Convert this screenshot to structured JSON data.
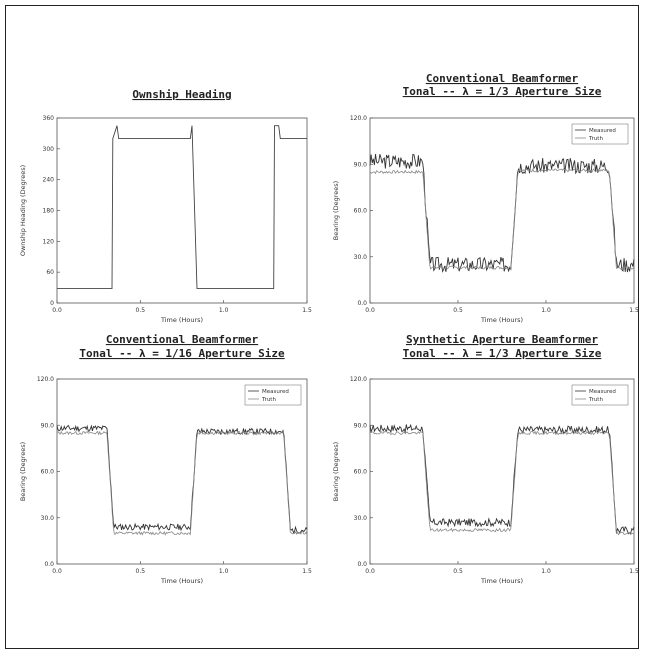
{
  "chart_data": [
    {
      "type": "line",
      "title": "Ownship Heading",
      "title_lines": [
        "Ownship Heading"
      ],
      "xlabel": "Time (Hours)",
      "ylabel": "Ownship Heading (Degrees)",
      "xlim": [
        0,
        1.5
      ],
      "ylim": [
        0,
        360
      ],
      "xticks": [
        {
          "v": 0,
          "label": "0.0"
        },
        {
          "v": 0.5,
          "label": "0.5"
        },
        {
          "v": 1.0,
          "label": "1.0"
        },
        {
          "v": 1.5,
          "label": "1.5"
        }
      ],
      "yticks": [
        {
          "v": 0,
          "label": "0"
        },
        {
          "v": 60,
          "label": "60"
        },
        {
          "v": 120,
          "label": "120"
        },
        {
          "v": 180,
          "label": "180"
        },
        {
          "v": 240,
          "label": "240"
        },
        {
          "v": 300,
          "label": "300"
        },
        {
          "v": 360,
          "label": "360"
        }
      ],
      "legend": [],
      "series": [
        {
          "color": "#444444",
          "x": [
            0,
            0.33,
            0.335,
            0.36,
            0.37,
            0.8,
            0.81,
            0.84,
            0.845,
            1.3,
            1.305,
            1.33,
            1.34,
            1.5
          ],
          "y": [
            28,
            28,
            320,
            345,
            320,
            320,
            345,
            28,
            28,
            28,
            345,
            345,
            320,
            320
          ]
        }
      ]
    },
    {
      "type": "line",
      "title": "Conventional Beamformer Tonal -- λ = 1/3 Aperture Size",
      "title_lines": [
        "Conventional Beamformer",
        "Tonal -- λ = 1/3 Aperture Size"
      ],
      "xlabel": "Time (Hours)",
      "ylabel": "Bearing (Degrees)",
      "xlim": [
        0,
        1.5
      ],
      "ylim": [
        0,
        120
      ],
      "xticks": [
        {
          "v": 0,
          "label": "0.0"
        },
        {
          "v": 0.5,
          "label": "0.5"
        },
        {
          "v": 1.0,
          "label": "1.0"
        },
        {
          "v": 1.5,
          "label": "1.5"
        }
      ],
      "yticks": [
        {
          "v": 0,
          "label": "0.0"
        },
        {
          "v": 30,
          "label": "30.0"
        },
        {
          "v": 60,
          "label": "60.0"
        },
        {
          "v": 90,
          "label": "90.0"
        },
        {
          "v": 120,
          "label": "120.0"
        }
      ],
      "legend": [
        {
          "label": "Measured",
          "color": "#333333"
        },
        {
          "label": "Truth",
          "color": "#888888"
        }
      ],
      "series": [
        {
          "name": "Measured",
          "color": "#333333",
          "noise": 5,
          "seed": 3,
          "x": [
            0,
            0.3,
            0.34,
            0.8,
            0.84,
            1.36,
            1.4,
            1.5
          ],
          "y": [
            92,
            92,
            25,
            25,
            89,
            89,
            25,
            25
          ]
        },
        {
          "name": "Truth",
          "color": "#888888",
          "noise": 1,
          "seed": 7,
          "x": [
            0,
            0.3,
            0.34,
            0.8,
            0.84,
            1.36,
            1.4,
            1.5
          ],
          "y": [
            85,
            85,
            23,
            23,
            86,
            86,
            23,
            23
          ]
        }
      ]
    },
    {
      "type": "line",
      "title": "Conventional Beamformer Tonal -- λ = 1/16 Aperture Size",
      "title_lines": [
        "Conventional Beamformer",
        "Tonal -- λ = 1/16 Aperture Size"
      ],
      "xlabel": "Time (Hours)",
      "ylabel": "Bearing (Degrees)",
      "xlim": [
        0,
        1.5
      ],
      "ylim": [
        0,
        120
      ],
      "xticks": [
        {
          "v": 0,
          "label": "0.0"
        },
        {
          "v": 0.5,
          "label": "0.5"
        },
        {
          "v": 1.0,
          "label": "1.0"
        },
        {
          "v": 1.5,
          "label": "1.5"
        }
      ],
      "yticks": [
        {
          "v": 0,
          "label": "0.0"
        },
        {
          "v": 30,
          "label": "30.0"
        },
        {
          "v": 60,
          "label": "60.0"
        },
        {
          "v": 90,
          "label": "90.0"
        },
        {
          "v": 120,
          "label": "120.0"
        }
      ],
      "legend": [
        {
          "label": "Measured",
          "color": "#333333"
        },
        {
          "label": "Truth",
          "color": "#888888"
        }
      ],
      "series": [
        {
          "name": "Measured",
          "color": "#333333",
          "noise": 2,
          "seed": 11,
          "x": [
            0,
            0.3,
            0.34,
            0.8,
            0.84,
            1.36,
            1.4,
            1.5
          ],
          "y": [
            88,
            88,
            24,
            24,
            86,
            86,
            22,
            22
          ]
        },
        {
          "name": "Truth",
          "color": "#888888",
          "noise": 1,
          "seed": 13,
          "x": [
            0,
            0.3,
            0.34,
            0.8,
            0.84,
            1.36,
            1.4,
            1.5
          ],
          "y": [
            85,
            85,
            20,
            20,
            85,
            85,
            20,
            20
          ]
        }
      ]
    },
    {
      "type": "line",
      "title": "Synthetic Aperture Beamformer Tonal -- λ = 1/3 Aperture Size",
      "title_lines": [
        "Synthetic Aperture Beamformer",
        "Tonal -- λ = 1/3 Aperture Size"
      ],
      "xlabel": "Time (Hours)",
      "ylabel": "Bearing (Degrees)",
      "xlim": [
        0,
        1.5
      ],
      "ylim": [
        0,
        120
      ],
      "xticks": [
        {
          "v": 0,
          "label": "0.0"
        },
        {
          "v": 0.5,
          "label": "0.5"
        },
        {
          "v": 1.0,
          "label": "1.0"
        },
        {
          "v": 1.5,
          "label": "1.5"
        }
      ],
      "yticks": [
        {
          "v": 0,
          "label": "0.0"
        },
        {
          "v": 30,
          "label": "30.0"
        },
        {
          "v": 60,
          "label": "60.0"
        },
        {
          "v": 90,
          "label": "90.0"
        },
        {
          "v": 120,
          "label": "120.0"
        }
      ],
      "legend": [
        {
          "label": "Measured",
          "color": "#333333"
        },
        {
          "label": "Truth",
          "color": "#888888"
        }
      ],
      "series": [
        {
          "name": "Measured",
          "color": "#333333",
          "noise": 2.5,
          "seed": 17,
          "x": [
            0,
            0.3,
            0.34,
            0.8,
            0.84,
            1.36,
            1.4,
            1.5
          ],
          "y": [
            88,
            88,
            27,
            27,
            87,
            87,
            22,
            22
          ]
        },
        {
          "name": "Truth",
          "color": "#888888",
          "noise": 1,
          "seed": 19,
          "x": [
            0,
            0.3,
            0.34,
            0.8,
            0.84,
            1.36,
            1.4,
            1.5
          ],
          "y": [
            85,
            85,
            22,
            22,
            85,
            85,
            20,
            20
          ]
        }
      ]
    }
  ]
}
